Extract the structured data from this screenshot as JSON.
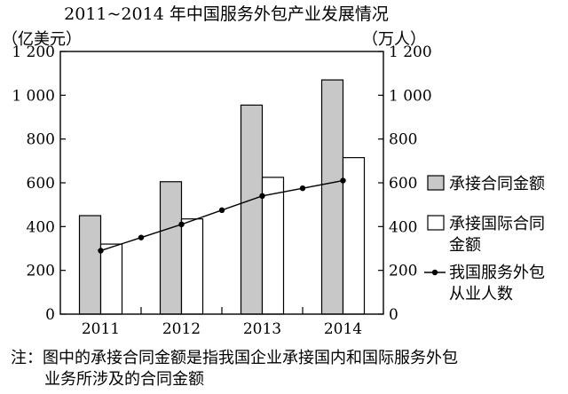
{
  "chart_data": {
    "type": "bar",
    "title": "2011~2014 年中国服务外包产业发展情况",
    "ylabel_left": "（亿美元）",
    "ylabel_right": "（万人）",
    "categories": [
      "2011",
      "2012",
      "2013",
      "2014"
    ],
    "ylim": [
      0,
      1200
    ],
    "yticks": [
      0,
      200,
      400,
      600,
      800,
      1000,
      1200
    ],
    "ytick_labels": [
      "0",
      "200",
      "400",
      "600",
      "800",
      "1 000",
      "1 200"
    ],
    "grid": false,
    "series": [
      {
        "name": "承接合同金额",
        "type": "bar",
        "color": "#c8c8c8",
        "values": [
          450,
          605,
          955,
          1070
        ]
      },
      {
        "name": "承接国际合同金额",
        "type": "bar",
        "color": "#ffffff",
        "values": [
          320,
          435,
          625,
          715
        ]
      },
      {
        "name": "我国服务外包从业人数",
        "type": "line",
        "color": "#000000",
        "axis": "right",
        "x": [
          2011,
          2011.5,
          2012,
          2012.5,
          2013,
          2013.5,
          2014
        ],
        "values": [
          290,
          350,
          410,
          475,
          540,
          575,
          610
        ]
      }
    ],
    "legend": {
      "position": "right",
      "items": [
        {
          "lines": [
            "承接合同金额"
          ]
        },
        {
          "lines": [
            "承接国际合同",
            "金额"
          ]
        },
        {
          "lines": [
            "我国服务外包",
            "从业人数"
          ]
        }
      ]
    }
  },
  "note": {
    "line1": "注：图中的承接合同金额是指我国企业承接国内和国际服务外包",
    "line2": "业务所涉及的合同金额"
  }
}
